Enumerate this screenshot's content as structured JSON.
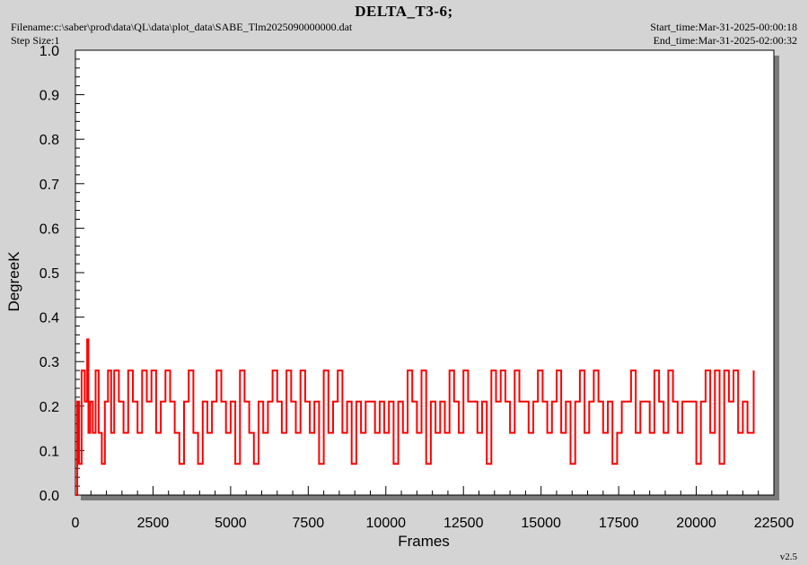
{
  "header": {
    "title": "DELTA_T3-6;",
    "filename": "Filename:c:\\saber\\prod\\data\\QL\\data\\plot_data\\SABE_Tlm2025090000000.dat",
    "step_size": "Step Size:1",
    "start_time": "Start_time:Mar-31-2025-00:00:18",
    "end_time": "End_time:Mar-31-2025-02:00:32"
  },
  "version": "v2.5",
  "chart_data": {
    "type": "line",
    "title": "DELTA_T3-6;",
    "xlabel": "Frames",
    "ylabel": "DegreeK",
    "xlim": [
      0,
      22500
    ],
    "ylim": [
      0.0,
      1.0
    ],
    "x_ticks": [
      "0",
      "2500",
      "5000",
      "7500",
      "10000",
      "12500",
      "15000",
      "17500",
      "20000",
      "22500"
    ],
    "y_ticks": [
      "0.0",
      "0.1",
      "0.2",
      "0.3",
      "0.4",
      "0.5",
      "0.6",
      "0.7",
      "0.8",
      "0.9",
      "1.0"
    ],
    "grid": false,
    "series": [
      {
        "color": "#ff0000",
        "x": [
          0,
          60,
          120,
          200,
          300,
          380,
          420,
          480,
          560,
          650,
          750,
          850,
          950,
          1050,
          1150,
          1250,
          1400,
          1550,
          1700,
          1850,
          2000,
          2150,
          2300,
          2450,
          2600,
          2750,
          2900,
          3050,
          3200,
          3350,
          3500,
          3650,
          3800,
          3950,
          4100,
          4250,
          4400,
          4550,
          4700,
          4850,
          5000,
          5150,
          5300,
          5450,
          5600,
          5750,
          5900,
          6050,
          6200,
          6350,
          6500,
          6650,
          6800,
          6950,
          7100,
          7250,
          7400,
          7550,
          7700,
          7850,
          8000,
          8150,
          8300,
          8450,
          8600,
          8750,
          8900,
          9050,
          9200,
          9350,
          9500,
          9650,
          9800,
          9950,
          10100,
          10250,
          10400,
          10550,
          10700,
          10850,
          11000,
          11150,
          11300,
          11450,
          11600,
          11750,
          11900,
          12050,
          12200,
          12350,
          12500,
          12650,
          12800,
          12950,
          13100,
          13250,
          13400,
          13550,
          13700,
          13850,
          14000,
          14150,
          14300,
          14450,
          14600,
          14750,
          14900,
          15050,
          15200,
          15350,
          15500,
          15650,
          15800,
          15950,
          16100,
          16250,
          16400,
          16550,
          16700,
          16850,
          17000,
          17150,
          17300,
          17450,
          17600,
          17750,
          17900,
          18050,
          18200,
          18350,
          18500,
          18650,
          18800,
          18950,
          19100,
          19250,
          19400,
          19550,
          19700,
          19850,
          20000,
          20150,
          20300,
          20450,
          20600,
          20750,
          20900,
          21050,
          21200,
          21350,
          21500,
          21650,
          21850
        ],
        "y": [
          0.0,
          0.21,
          0.07,
          0.28,
          0.21,
          0.35,
          0.14,
          0.21,
          0.14,
          0.28,
          0.14,
          0.07,
          0.21,
          0.28,
          0.14,
          0.28,
          0.21,
          0.14,
          0.28,
          0.21,
          0.14,
          0.28,
          0.21,
          0.28,
          0.14,
          0.21,
          0.28,
          0.21,
          0.14,
          0.07,
          0.21,
          0.28,
          0.14,
          0.07,
          0.21,
          0.14,
          0.21,
          0.28,
          0.21,
          0.14,
          0.21,
          0.07,
          0.28,
          0.21,
          0.14,
          0.07,
          0.21,
          0.14,
          0.21,
          0.28,
          0.21,
          0.14,
          0.28,
          0.21,
          0.14,
          0.28,
          0.21,
          0.14,
          0.21,
          0.07,
          0.28,
          0.14,
          0.21,
          0.28,
          0.14,
          0.21,
          0.07,
          0.21,
          0.14,
          0.21,
          0.21,
          0.14,
          0.21,
          0.14,
          0.21,
          0.07,
          0.21,
          0.14,
          0.28,
          0.21,
          0.14,
          0.28,
          0.07,
          0.21,
          0.14,
          0.21,
          0.14,
          0.28,
          0.21,
          0.14,
          0.28,
          0.21,
          0.21,
          0.14,
          0.21,
          0.07,
          0.28,
          0.21,
          0.28,
          0.21,
          0.14,
          0.28,
          0.21,
          0.21,
          0.14,
          0.21,
          0.28,
          0.21,
          0.14,
          0.21,
          0.28,
          0.14,
          0.21,
          0.07,
          0.21,
          0.28,
          0.14,
          0.21,
          0.28,
          0.21,
          0.14,
          0.21,
          0.07,
          0.14,
          0.21,
          0.21,
          0.28,
          0.14,
          0.21,
          0.21,
          0.14,
          0.28,
          0.21,
          0.14,
          0.28,
          0.21,
          0.14,
          0.21,
          0.21,
          0.21,
          0.07,
          0.21,
          0.28,
          0.14,
          0.28,
          0.07,
          0.28,
          0.21,
          0.28,
          0.14,
          0.21,
          0.14,
          0.28
        ]
      }
    ]
  }
}
